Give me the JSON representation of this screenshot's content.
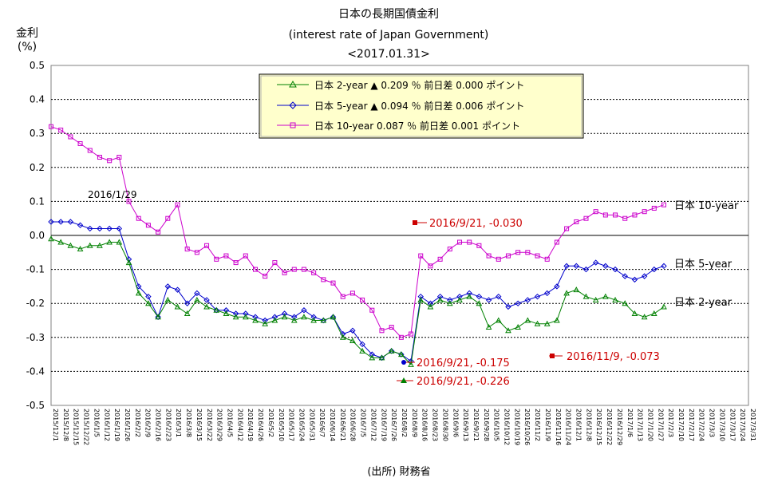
{
  "chart_data": {
    "type": "line",
    "title": "日本の長期国債金利",
    "subtitle": "(interest rate of Japan Government)",
    "date_label": "<2017.01.31>",
    "ylabel_line1": "金利",
    "ylabel_line2": "(%)",
    "source": "(出所) 財務省",
    "ylim": [
      -0.5,
      0.5
    ],
    "yticks": [
      "0.5",
      "0.4",
      "0.3",
      "0.2",
      "0.1",
      "0.0",
      "-0.1",
      "-0.2",
      "-0.3",
      "-0.4",
      "-0.5"
    ],
    "grid": true,
    "legend_position": "top-center",
    "legend": [
      {
        "text": "日本  2-year ▲ 0.209 ％ 前日差 0.000 ポイント",
        "color": "#008000",
        "marker": "triangle"
      },
      {
        "text": "日本  5-year ▲ 0.094 ％ 前日差 0.006 ポイント",
        "color": "#0000cc",
        "marker": "diamond"
      },
      {
        "text": "日本 10-year 0.087 ％ 前日差 0.001 ポイント",
        "color": "#cc00cc",
        "marker": "square"
      }
    ],
    "series": [
      {
        "name": "日本 10-year",
        "color": "#cc00cc",
        "end_label": "日本 10-year",
        "values": [
          0.32,
          0.31,
          0.29,
          0.27,
          0.25,
          0.23,
          0.22,
          0.23,
          0.1,
          0.05,
          0.03,
          0.01,
          0.05,
          0.09,
          -0.04,
          -0.05,
          -0.03,
          -0.07,
          -0.06,
          -0.08,
          -0.06,
          -0.1,
          -0.12,
          -0.08,
          -0.11,
          -0.1,
          -0.1,
          -0.11,
          -0.13,
          -0.14,
          -0.18,
          -0.17,
          -0.19,
          -0.22,
          -0.28,
          -0.27,
          -0.3,
          -0.29,
          -0.06,
          -0.09,
          -0.07,
          -0.04,
          -0.02,
          -0.02,
          -0.03,
          -0.06,
          -0.07,
          -0.06,
          -0.05,
          -0.05,
          -0.06,
          -0.07,
          -0.02,
          0.02,
          0.04,
          0.05,
          0.07,
          0.06,
          0.06,
          0.05,
          0.06,
          0.07,
          0.08,
          0.09
        ]
      },
      {
        "name": "日本 5-year",
        "color": "#0000cc",
        "end_label": "日本  5-year",
        "values": [
          0.04,
          0.04,
          0.04,
          0.03,
          0.02,
          0.02,
          0.02,
          0.02,
          -0.07,
          -0.15,
          -0.18,
          -0.24,
          -0.15,
          -0.16,
          -0.2,
          -0.17,
          -0.19,
          -0.22,
          -0.22,
          -0.23,
          -0.23,
          -0.24,
          -0.25,
          -0.24,
          -0.23,
          -0.24,
          -0.22,
          -0.24,
          -0.25,
          -0.24,
          -0.29,
          -0.28,
          -0.32,
          -0.35,
          -0.36,
          -0.34,
          -0.35,
          -0.37,
          -0.18,
          -0.2,
          -0.18,
          -0.19,
          -0.18,
          -0.17,
          -0.18,
          -0.19,
          -0.18,
          -0.21,
          -0.2,
          -0.19,
          -0.18,
          -0.17,
          -0.15,
          -0.09,
          -0.09,
          -0.1,
          -0.08,
          -0.09,
          -0.1,
          -0.12,
          -0.13,
          -0.12,
          -0.1,
          -0.09
        ]
      },
      {
        "name": "日本 2-year",
        "color": "#008000",
        "end_label": "日本  2-year",
        "values": [
          -0.01,
          -0.02,
          -0.03,
          -0.04,
          -0.03,
          -0.03,
          -0.02,
          -0.02,
          -0.08,
          -0.17,
          -0.2,
          -0.24,
          -0.19,
          -0.21,
          -0.23,
          -0.19,
          -0.21,
          -0.22,
          -0.23,
          -0.24,
          -0.24,
          -0.25,
          -0.26,
          -0.25,
          -0.24,
          -0.25,
          -0.24,
          -0.25,
          -0.25,
          -0.24,
          -0.3,
          -0.31,
          -0.34,
          -0.36,
          -0.36,
          -0.34,
          -0.35,
          -0.38,
          -0.19,
          -0.21,
          -0.19,
          -0.2,
          -0.19,
          -0.18,
          -0.2,
          -0.27,
          -0.25,
          -0.28,
          -0.27,
          -0.25,
          -0.26,
          -0.26,
          -0.25,
          -0.17,
          -0.16,
          -0.18,
          -0.19,
          -0.18,
          -0.19,
          -0.2,
          -0.23,
          -0.24,
          -0.23,
          -0.21
        ]
      }
    ],
    "annotations": [
      {
        "text": "2016/1/29",
        "color": "#000000"
      },
      {
        "text": "2016/9/21, -0.030",
        "color": "#cc0000"
      },
      {
        "text": "2016/9/21, -0.175",
        "color": "#cc0000"
      },
      {
        "text": "2016/9/21, -0.226",
        "color": "#cc0000"
      },
      {
        "text": "2016/11/9, -0.073",
        "color": "#cc0000"
      }
    ],
    "x_tick_labels": [
      "2015/12/1",
      "2015/12/8",
      "2015/12/15",
      "2015/12/22",
      "2016/1/5",
      "2016/1/12",
      "2016/1/19",
      "2016/1/26",
      "2016/2/2",
      "2016/2/9",
      "2016/2/16",
      "2016/2/23",
      "2016/3/1",
      "2016/3/8",
      "2016/3/15",
      "2016/3/22",
      "2016/3/29",
      "2016/4/5",
      "2016/4/12",
      "2016/4/19",
      "2016/4/26",
      "2016/5/2",
      "2016/5/10",
      "2016/5/17",
      "2016/5/24",
      "2016/5/31",
      "2016/6/7",
      "2016/6/14",
      "2016/6/21",
      "2016/6/28",
      "2016/7/5",
      "2016/7/12",
      "2016/7/19",
      "2016/7/26",
      "2016/8/2",
      "2016/8/9",
      "2016/8/16",
      "2016/8/23",
      "2016/8/30",
      "2016/9/6",
      "2016/9/13",
      "2016/9/21",
      "2016/9/28",
      "2016/10/5",
      "2016/10/12",
      "2016/10/19",
      "2016/10/26",
      "2016/11/2",
      "2016/11/9",
      "2016/11/16",
      "2016/11/24",
      "2016/12/1",
      "2016/12/8",
      "2016/12/15",
      "2016/12/22",
      "2016/12/29",
      "2017/1/6",
      "2017/1/13",
      "2017/1/20",
      "2017/1/27",
      "2017/2/3",
      "2017/2/10",
      "2017/2/17",
      "2017/2/24",
      "2017/3/3",
      "2017/3/10",
      "2017/3/17",
      "2017/3/24",
      "2017/3/31"
    ]
  }
}
